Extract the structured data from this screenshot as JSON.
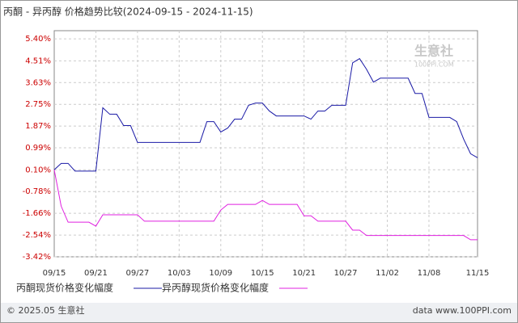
{
  "chart_data": {
    "type": "line",
    "title": "丙酮 - 异丙醇 价格趋势比较(2024-09-15 - 2024-11-15)",
    "watermark": {
      "name": "生意社",
      "site": "100PPI.COM"
    },
    "footer": {
      "left": "© 2025.05 生意社",
      "right": "data www.100PPI.com"
    },
    "categories": [
      "09/15",
      null,
      null,
      null,
      null,
      null,
      "09/21",
      null,
      null,
      null,
      null,
      null,
      "09/27",
      null,
      null,
      null,
      null,
      null,
      "10/03",
      null,
      null,
      null,
      null,
      null,
      "10/09",
      null,
      null,
      null,
      null,
      null,
      "10/15",
      null,
      null,
      null,
      null,
      null,
      "10/21",
      null,
      null,
      null,
      null,
      null,
      "10/27",
      null,
      null,
      null,
      null,
      null,
      "11/02",
      null,
      null,
      null,
      null,
      null,
      "11/08",
      null,
      null,
      null,
      null,
      null,
      null,
      "11/15"
    ],
    "series": [
      {
        "name": "丙酮现货价格变化幅度",
        "color": "#1a1aa6",
        "values": [
          0.1,
          0.36,
          0.36,
          0.05,
          0.05,
          0.05,
          0.05,
          2.61,
          2.35,
          2.35,
          1.89,
          1.89,
          1.21,
          1.21,
          1.21,
          1.21,
          1.21,
          1.21,
          1.21,
          1.21,
          1.21,
          1.21,
          2.05,
          2.05,
          1.63,
          1.79,
          2.15,
          2.15,
          2.71,
          2.8,
          2.8,
          2.48,
          2.28,
          2.28,
          2.28,
          2.28,
          2.28,
          2.15,
          2.48,
          2.48,
          2.71,
          2.71,
          2.71,
          4.43,
          4.6,
          4.17,
          3.65,
          3.81,
          3.81,
          3.81,
          3.81,
          3.81,
          3.19,
          3.19,
          2.22,
          2.22,
          2.22,
          2.22,
          2.05,
          1.34,
          0.75,
          0.59
        ]
      },
      {
        "name": "异丙醇现货价格变化幅度",
        "color": "#e020e0",
        "values": [
          0.1,
          -1.37,
          -2.02,
          -2.02,
          -2.02,
          -2.02,
          -2.18,
          -1.72,
          -1.72,
          -1.72,
          -1.72,
          -1.72,
          -1.72,
          -1.98,
          -1.98,
          -1.98,
          -1.98,
          -1.98,
          -1.98,
          -1.98,
          -1.98,
          -1.98,
          -1.98,
          -1.98,
          -1.53,
          -1.3,
          -1.3,
          -1.3,
          -1.3,
          -1.3,
          -1.14,
          -1.3,
          -1.3,
          -1.3,
          -1.3,
          -1.3,
          -1.76,
          -1.76,
          -1.98,
          -1.98,
          -1.98,
          -1.98,
          -1.98,
          -2.34,
          -2.34,
          -2.56,
          -2.56,
          -2.56,
          -2.56,
          -2.56,
          -2.56,
          -2.56,
          -2.56,
          -2.56,
          -2.56,
          -2.56,
          -2.56,
          -2.56,
          -2.56,
          -2.56,
          -2.73,
          -2.73
        ]
      }
    ],
    "ylim": [
      -3.42,
      5.73
    ],
    "yticks": [
      {
        "value": 5.4,
        "label": "5.40%"
      },
      {
        "value": 4.51,
        "label": "4.51%"
      },
      {
        "value": 3.63,
        "label": "3.63%"
      },
      {
        "value": 2.75,
        "label": "2.75%"
      },
      {
        "value": 1.87,
        "label": "1.87%"
      },
      {
        "value": 0.99,
        "label": "0.99%"
      },
      {
        "value": 0.1,
        "label": "0.10%"
      },
      {
        "value": -0.78,
        "label": "-0.78%"
      },
      {
        "value": -1.66,
        "label": "-1.66%"
      },
      {
        "value": -2.54,
        "label": "-2.54%"
      },
      {
        "value": -3.42,
        "label": "-3.42%"
      }
    ],
    "grid": true
  }
}
